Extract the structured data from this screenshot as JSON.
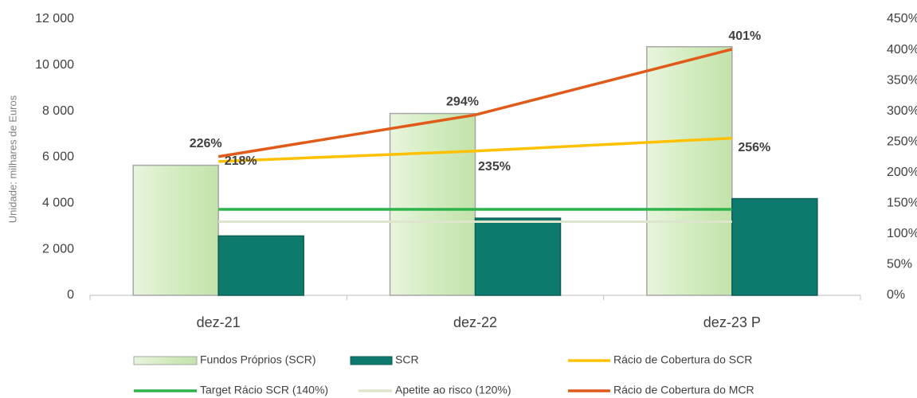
{
  "chart_data": {
    "type": "bar",
    "ylabel": "Unidade: milhares de Euros",
    "categories": [
      "dez-21",
      "dez-22",
      "dez-23 P"
    ],
    "series": [
      {
        "name": "Fundos Próprios (SCR)",
        "type": "bar",
        "color": "#d3ecc0",
        "values": [
          5650,
          7900,
          10800
        ]
      },
      {
        "name": "SCR",
        "type": "bar",
        "color": "#0e7a6e",
        "values": [
          2580,
          3350,
          4200
        ]
      },
      {
        "name": "Rácio de Cobertura do SCR",
        "type": "line",
        "axis": "y2",
        "color": "#ffc000",
        "values": [
          218,
          235,
          256
        ],
        "value_labels": [
          "218%",
          "235%",
          "256%"
        ]
      },
      {
        "name": "Target Rácio SCR (140%)",
        "type": "line",
        "axis": "y2",
        "color": "#2db34a",
        "values": [
          140,
          140,
          140
        ]
      },
      {
        "name": "Apetite ao risco (120%)",
        "type": "line",
        "axis": "y2",
        "color": "#dde5cc",
        "values": [
          120,
          120,
          120
        ]
      },
      {
        "name": "Rácio de Cobertura do MCR",
        "type": "line",
        "axis": "y2",
        "color": "#e05b1a",
        "values": [
          226,
          294,
          401
        ],
        "value_labels": [
          "226%",
          "294%",
          "401%"
        ]
      }
    ],
    "ylim": [
      0,
      12000
    ],
    "yticks": [
      0,
      {
        "value": 2000,
        "label": "2 000"
      },
      {
        "value": 4000,
        "label": "4 000"
      },
      {
        "value": 6000,
        "label": "6 000"
      },
      {
        "value": 8000,
        "label": "8 000"
      },
      {
        "value": 10000,
        "label": "10 000"
      },
      {
        "value": 12000,
        "label": "12 000"
      }
    ],
    "y2lim": [
      0,
      450
    ],
    "y2ticks": [
      {
        "value": 0,
        "label": "0%"
      },
      {
        "value": 50,
        "label": "50%"
      },
      {
        "value": 100,
        "label": "100%"
      },
      {
        "value": 150,
        "label": "150%"
      },
      {
        "value": 200,
        "label": "200%"
      },
      {
        "value": 250,
        "label": "250%"
      },
      {
        "value": 300,
        "label": "300%"
      },
      {
        "value": 350,
        "label": "350%"
      },
      {
        "value": 400,
        "label": "400%"
      },
      {
        "value": 450,
        "label": "450%"
      }
    ],
    "grid": false
  }
}
